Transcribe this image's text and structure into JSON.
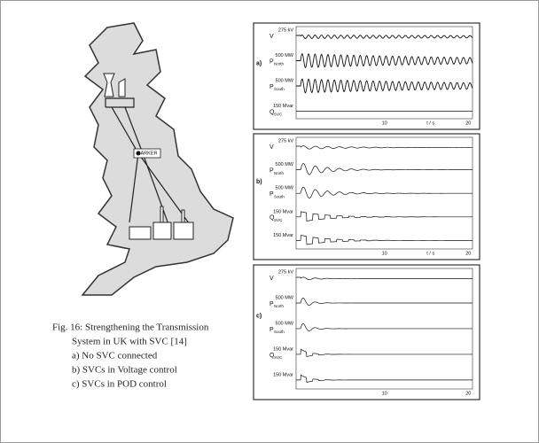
{
  "map": {
    "label": "HARKER"
  },
  "panels": [
    {
      "label": "a)",
      "traces": [
        {
          "unit": "275 kV",
          "symbol": "V"
        },
        {
          "unit": "500 MW",
          "symbol": "P",
          "subscript": "North"
        },
        {
          "unit": "500 MW",
          "symbol": "P",
          "subscript": "South"
        },
        {
          "unit": "150 Mvar",
          "symbol": "Q",
          "subscript": "SVC"
        }
      ],
      "axis": {
        "ticks": [
          10,
          20
        ],
        "unit": "t / s"
      }
    },
    {
      "label": "b)",
      "traces": [
        {
          "unit": "275 kV",
          "symbol": "V"
        },
        {
          "unit": "500 MW",
          "symbol": "P",
          "subscript": "North"
        },
        {
          "unit": "500 MW",
          "symbol": "P",
          "subscript": "South"
        },
        {
          "unit": "150 Mvar",
          "symbol": "Q",
          "subscript": "SVC"
        },
        {
          "unit": "150 Mvar"
        }
      ],
      "axis": {
        "ticks": [
          10,
          20
        ],
        "unit": "t / s"
      }
    },
    {
      "label": "c)",
      "traces": [
        {
          "unit": "275 kV",
          "symbol": "V"
        },
        {
          "unit": "500 MW",
          "symbol": "P",
          "subscript": "North"
        },
        {
          "unit": "500 MW",
          "symbol": "P",
          "subscript": "South"
        },
        {
          "unit": "150 Mvar",
          "symbol": "Q",
          "subscript": "SVC"
        },
        {
          "unit": "150 Mvar"
        }
      ],
      "axis": {
        "ticks": [
          10,
          20
        ],
        "unit": ""
      }
    }
  ],
  "caption": {
    "lines": [
      "Fig. 16: Strengthening the Transmission",
      "System in UK with SVC [14]",
      "a) No SVC connected",
      "b) SVCs in Voltage control",
      "c) SVCs in POD control"
    ]
  }
}
